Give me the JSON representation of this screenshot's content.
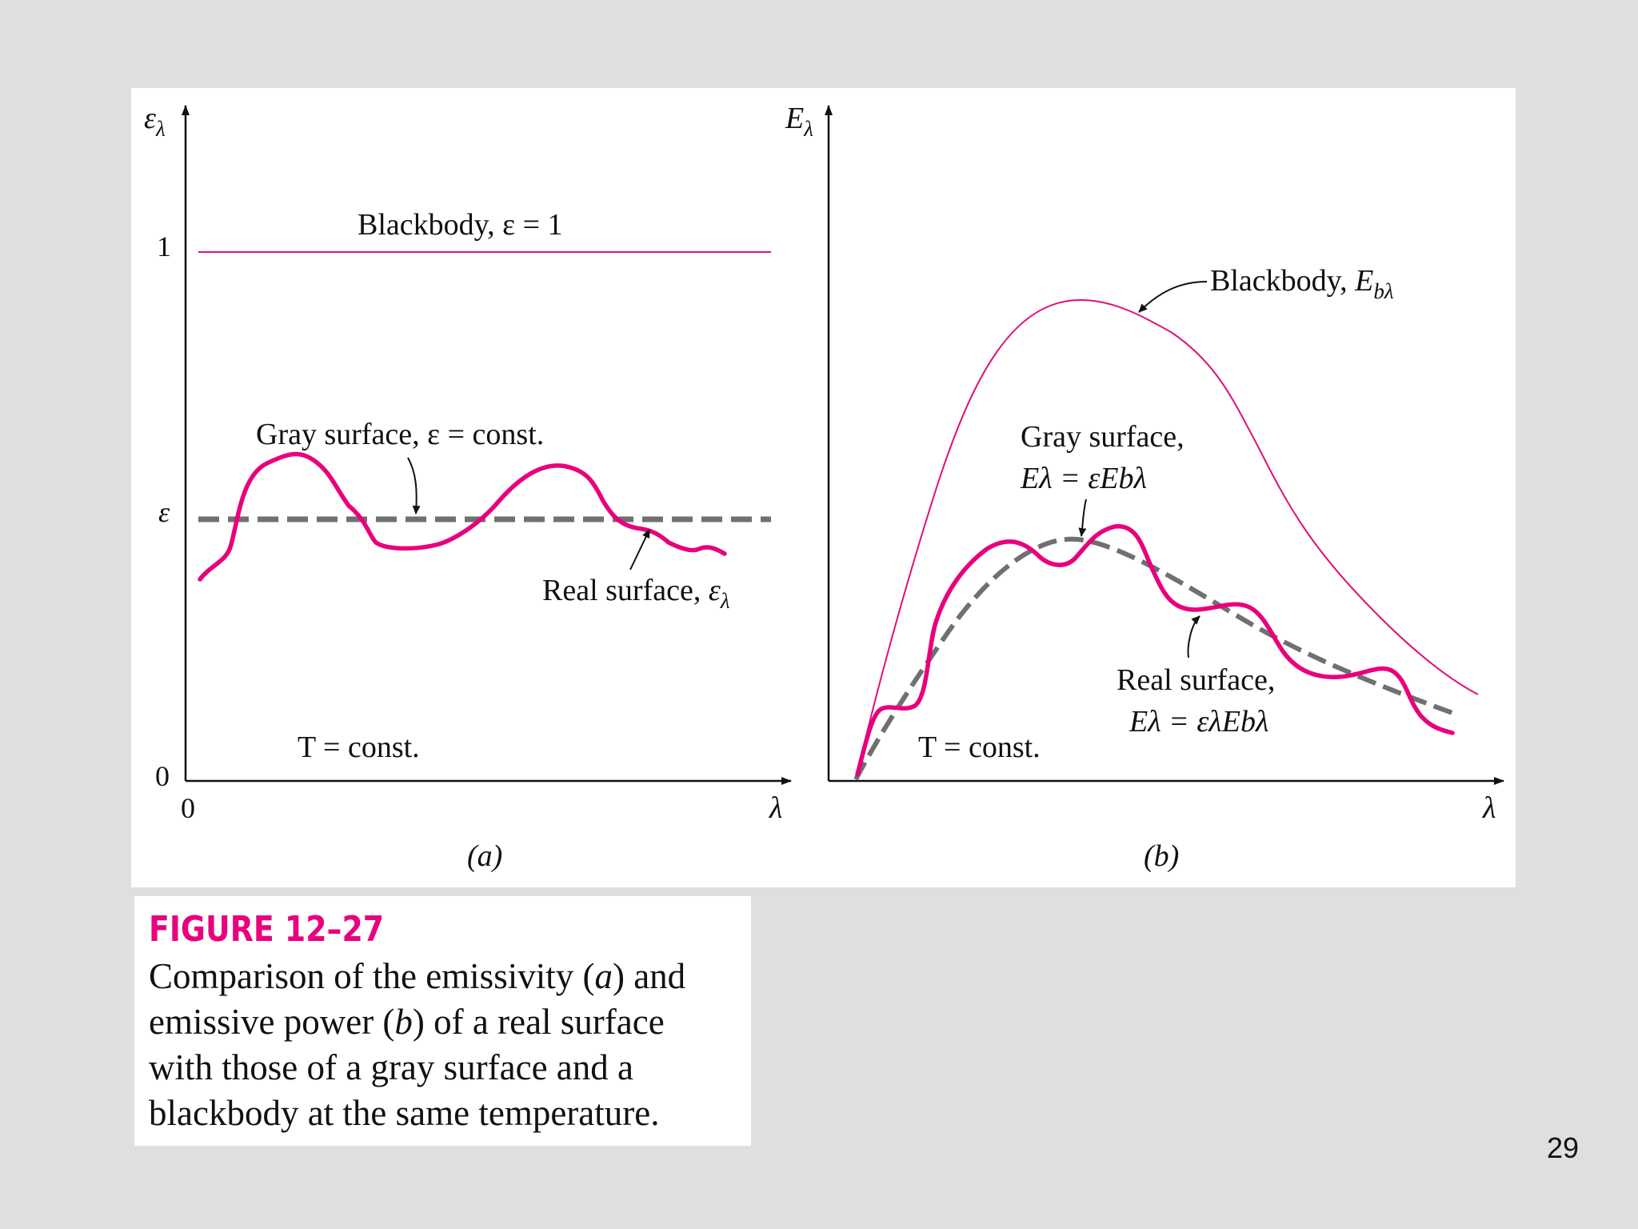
{
  "colors": {
    "slide_background": "#dfdfe1",
    "blackbody_curve": "#e0107a",
    "real_surface_curve": "#e8007d",
    "gray_surface_curve": "#707070",
    "caption_title": "#e8007d",
    "text": "#111111"
  },
  "panel_a": {
    "y_axis_label_symbol": "ε",
    "y_axis_label_subscript": "λ",
    "x_axis_label": "λ",
    "y_tick_one": "1",
    "y_tick_epsilon": "ε",
    "y_tick_zero": "0",
    "x_tick_zero": "0",
    "blackbody_label": "Blackbody, ε = 1",
    "gray_label": "Gray surface, ε = const.",
    "real_label_text": "Real surface, ",
    "real_label_symbol": "ε",
    "real_label_subscript": "λ",
    "temperature_label": "T = const.",
    "panel_caption": "(a)"
  },
  "panel_b": {
    "y_axis_label_symbol": "E",
    "y_axis_label_subscript": "λ",
    "x_axis_label": "λ",
    "blackbody_label_text": "Blackbody, ",
    "blackbody_label_symbol": "E",
    "blackbody_label_subscript": "bλ",
    "gray_label_line1": "Gray surface,",
    "gray_label_line2": "Eλ = εEbλ",
    "real_label_line1": "Real surface,",
    "real_label_line2": "Eλ = ελEbλ",
    "temperature_label": "T = const.",
    "panel_caption": "(b)"
  },
  "caption": {
    "title": "FIGURE 12–27",
    "line1_a": "Comparison of the emissivity (",
    "line1_b": "a",
    "line1_c": ") and",
    "line2_a": "emissive power (",
    "line2_b": "b",
    "line2_c": ") of a real surface",
    "line3": "with those of a gray surface and a",
    "line4": "blackbody at the same temperature."
  },
  "slide_number": "29"
}
